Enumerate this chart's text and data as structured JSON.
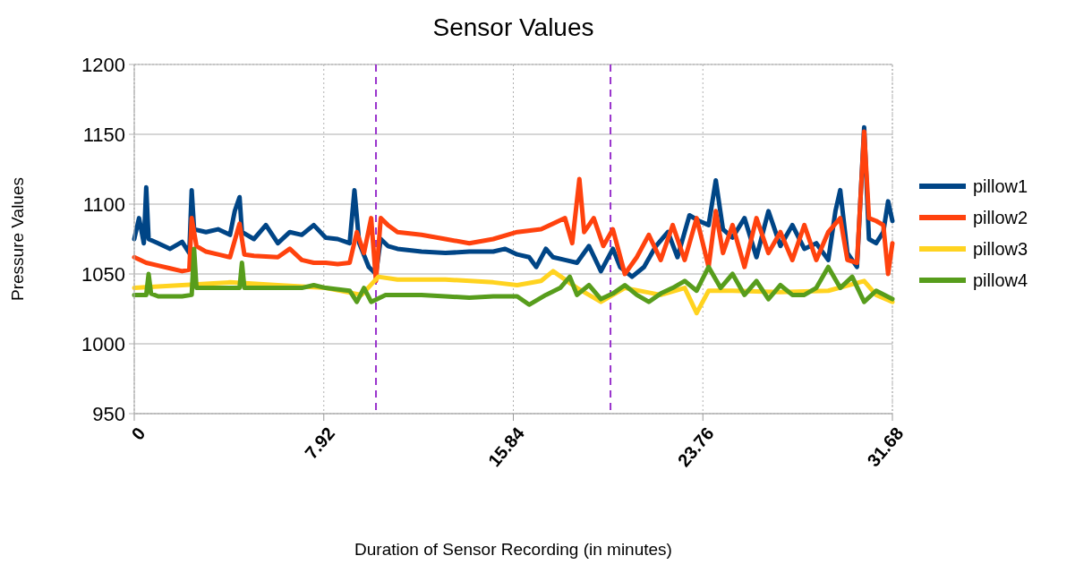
{
  "chart_data": {
    "type": "line",
    "title": "Sensor Values",
    "xlabel": "Duration of Sensor Recording (in minutes)",
    "ylabel": "Pressure Values",
    "xlim": [
      0,
      31.68
    ],
    "xticks": [
      0,
      7.92,
      15.84,
      23.76,
      31.68
    ],
    "ylim": [
      950,
      1200
    ],
    "yticks": [
      950,
      1000,
      1050,
      1100,
      1150,
      1200
    ],
    "grid": true,
    "legend": "right",
    "marker": "none",
    "line_style": "solid",
    "ref_lines": [
      {
        "axis": "x",
        "value": 10.1,
        "color": "#9933cc",
        "line_style": "dashed"
      },
      {
        "axis": "x",
        "value": 19.9,
        "color": "#9933cc",
        "line_style": "dashed"
      }
    ],
    "series": [
      {
        "name": "pillow1",
        "color": "#004586",
        "x": [
          0,
          0.2,
          0.4,
          0.5,
          0.6,
          1,
          1.5,
          2,
          2.3,
          2.4,
          2.5,
          3,
          3.5,
          4,
          4.2,
          4.4,
          4.5,
          5,
          5.5,
          6,
          6.5,
          7,
          7.5,
          8,
          8.5,
          9,
          9.2,
          9.4,
          9.8,
          10.1,
          10.3,
          10.6,
          11,
          12,
          13,
          14,
          15,
          15.5,
          16,
          16.5,
          16.8,
          17.2,
          17.5,
          18,
          18.5,
          19,
          19.5,
          20,
          20.3,
          20.8,
          21.3,
          21.8,
          22.3,
          22.7,
          23.2,
          23.6,
          24,
          24.3,
          24.6,
          25,
          25.5,
          26,
          26.5,
          27,
          27.5,
          28,
          28.5,
          29,
          29.3,
          29.5,
          29.8,
          30.2,
          30.5,
          30.7,
          31,
          31.3,
          31.5,
          31.68
        ],
        "values": [
          1075,
          1090,
          1072,
          1112,
          1075,
          1072,
          1068,
          1073,
          1065,
          1110,
          1082,
          1080,
          1082,
          1078,
          1095,
          1105,
          1080,
          1075,
          1085,
          1072,
          1080,
          1078,
          1085,
          1076,
          1075,
          1072,
          1110,
          1072,
          1055,
          1050,
          1075,
          1070,
          1068,
          1066,
          1065,
          1066,
          1066,
          1068,
          1064,
          1062,
          1055,
          1068,
          1062,
          1060,
          1058,
          1070,
          1052,
          1068,
          1055,
          1048,
          1055,
          1070,
          1080,
          1062,
          1092,
          1088,
          1085,
          1117,
          1082,
          1076,
          1090,
          1062,
          1095,
          1070,
          1085,
          1068,
          1072,
          1060,
          1095,
          1110,
          1065,
          1055,
          1155,
          1075,
          1072,
          1080,
          1102,
          1088
        ]
      },
      {
        "name": "pillow2",
        "color": "#ff420e",
        "x": [
          0,
          0.5,
          1,
          1.5,
          2,
          2.3,
          2.4,
          2.6,
          3,
          3.5,
          4,
          4.4,
          4.6,
          5,
          6,
          6.5,
          7,
          7.5,
          8,
          8.5,
          9,
          9.3,
          9.6,
          9.9,
          10.1,
          10.3,
          10.6,
          11,
          12,
          13,
          14,
          15,
          16,
          17,
          18,
          18.3,
          18.6,
          18.8,
          19.2,
          19.6,
          20,
          20.5,
          21,
          21.5,
          22,
          22.5,
          23,
          23.5,
          24,
          24.3,
          24.6,
          25,
          25.5,
          26,
          26.5,
          27,
          27.5,
          28,
          28.5,
          29,
          29.5,
          29.8,
          30.2,
          30.5,
          30.7,
          31,
          31.3,
          31.5,
          31.68
        ],
        "values": [
          1062,
          1058,
          1056,
          1054,
          1052,
          1053,
          1090,
          1070,
          1066,
          1064,
          1062,
          1086,
          1064,
          1063,
          1062,
          1068,
          1060,
          1058,
          1058,
          1057,
          1058,
          1080,
          1065,
          1090,
          1045,
          1090,
          1085,
          1080,
          1078,
          1075,
          1072,
          1075,
          1080,
          1082,
          1090,
          1072,
          1118,
          1080,
          1090,
          1070,
          1082,
          1050,
          1062,
          1078,
          1060,
          1085,
          1060,
          1090,
          1055,
          1095,
          1065,
          1085,
          1055,
          1090,
          1065,
          1080,
          1060,
          1085,
          1060,
          1080,
          1090,
          1060,
          1058,
          1152,
          1090,
          1088,
          1085,
          1050,
          1072
        ]
      },
      {
        "name": "pillow3",
        "color": "#ffd320",
        "x": [
          0,
          2,
          4,
          6,
          8,
          9.5,
          10.2,
          11,
          13,
          15,
          16,
          17,
          17.5,
          18.5,
          19.5,
          20.5,
          22,
          23,
          23.5,
          24,
          25,
          27,
          29,
          30.5,
          31,
          31.68
        ],
        "values": [
          1040,
          1042,
          1044,
          1042,
          1040,
          1035,
          1048,
          1046,
          1046,
          1044,
          1042,
          1045,
          1052,
          1040,
          1030,
          1040,
          1035,
          1040,
          1022,
          1038,
          1038,
          1037,
          1038,
          1045,
          1035,
          1030
        ]
      },
      {
        "name": "pillow4",
        "color": "#579d1c",
        "x": [
          0,
          0.5,
          0.6,
          0.7,
          1,
          2,
          2.4,
          2.5,
          2.6,
          3,
          4,
          4.4,
          4.5,
          4.6,
          5,
          6,
          7,
          7.5,
          8,
          9,
          9.3,
          9.6,
          9.9,
          10.5,
          12,
          13,
          14,
          15,
          16,
          16.5,
          17.2,
          17.8,
          18.2,
          18.5,
          19,
          19.5,
          20,
          20.5,
          21,
          21.5,
          22,
          22.5,
          23,
          23.5,
          24,
          24.5,
          25,
          25.5,
          26,
          26.5,
          27,
          27.5,
          28,
          28.5,
          29,
          29.5,
          30,
          30.5,
          31,
          31.68
        ],
        "values": [
          1035,
          1035,
          1050,
          1036,
          1034,
          1034,
          1035,
          1068,
          1040,
          1040,
          1040,
          1040,
          1058,
          1040,
          1040,
          1040,
          1040,
          1042,
          1040,
          1038,
          1030,
          1040,
          1030,
          1035,
          1035,
          1034,
          1033,
          1034,
          1034,
          1028,
          1035,
          1040,
          1048,
          1035,
          1042,
          1032,
          1036,
          1042,
          1035,
          1030,
          1036,
          1040,
          1045,
          1038,
          1055,
          1040,
          1050,
          1035,
          1045,
          1032,
          1042,
          1035,
          1035,
          1040,
          1055,
          1040,
          1048,
          1030,
          1038,
          1032
        ]
      }
    ]
  }
}
